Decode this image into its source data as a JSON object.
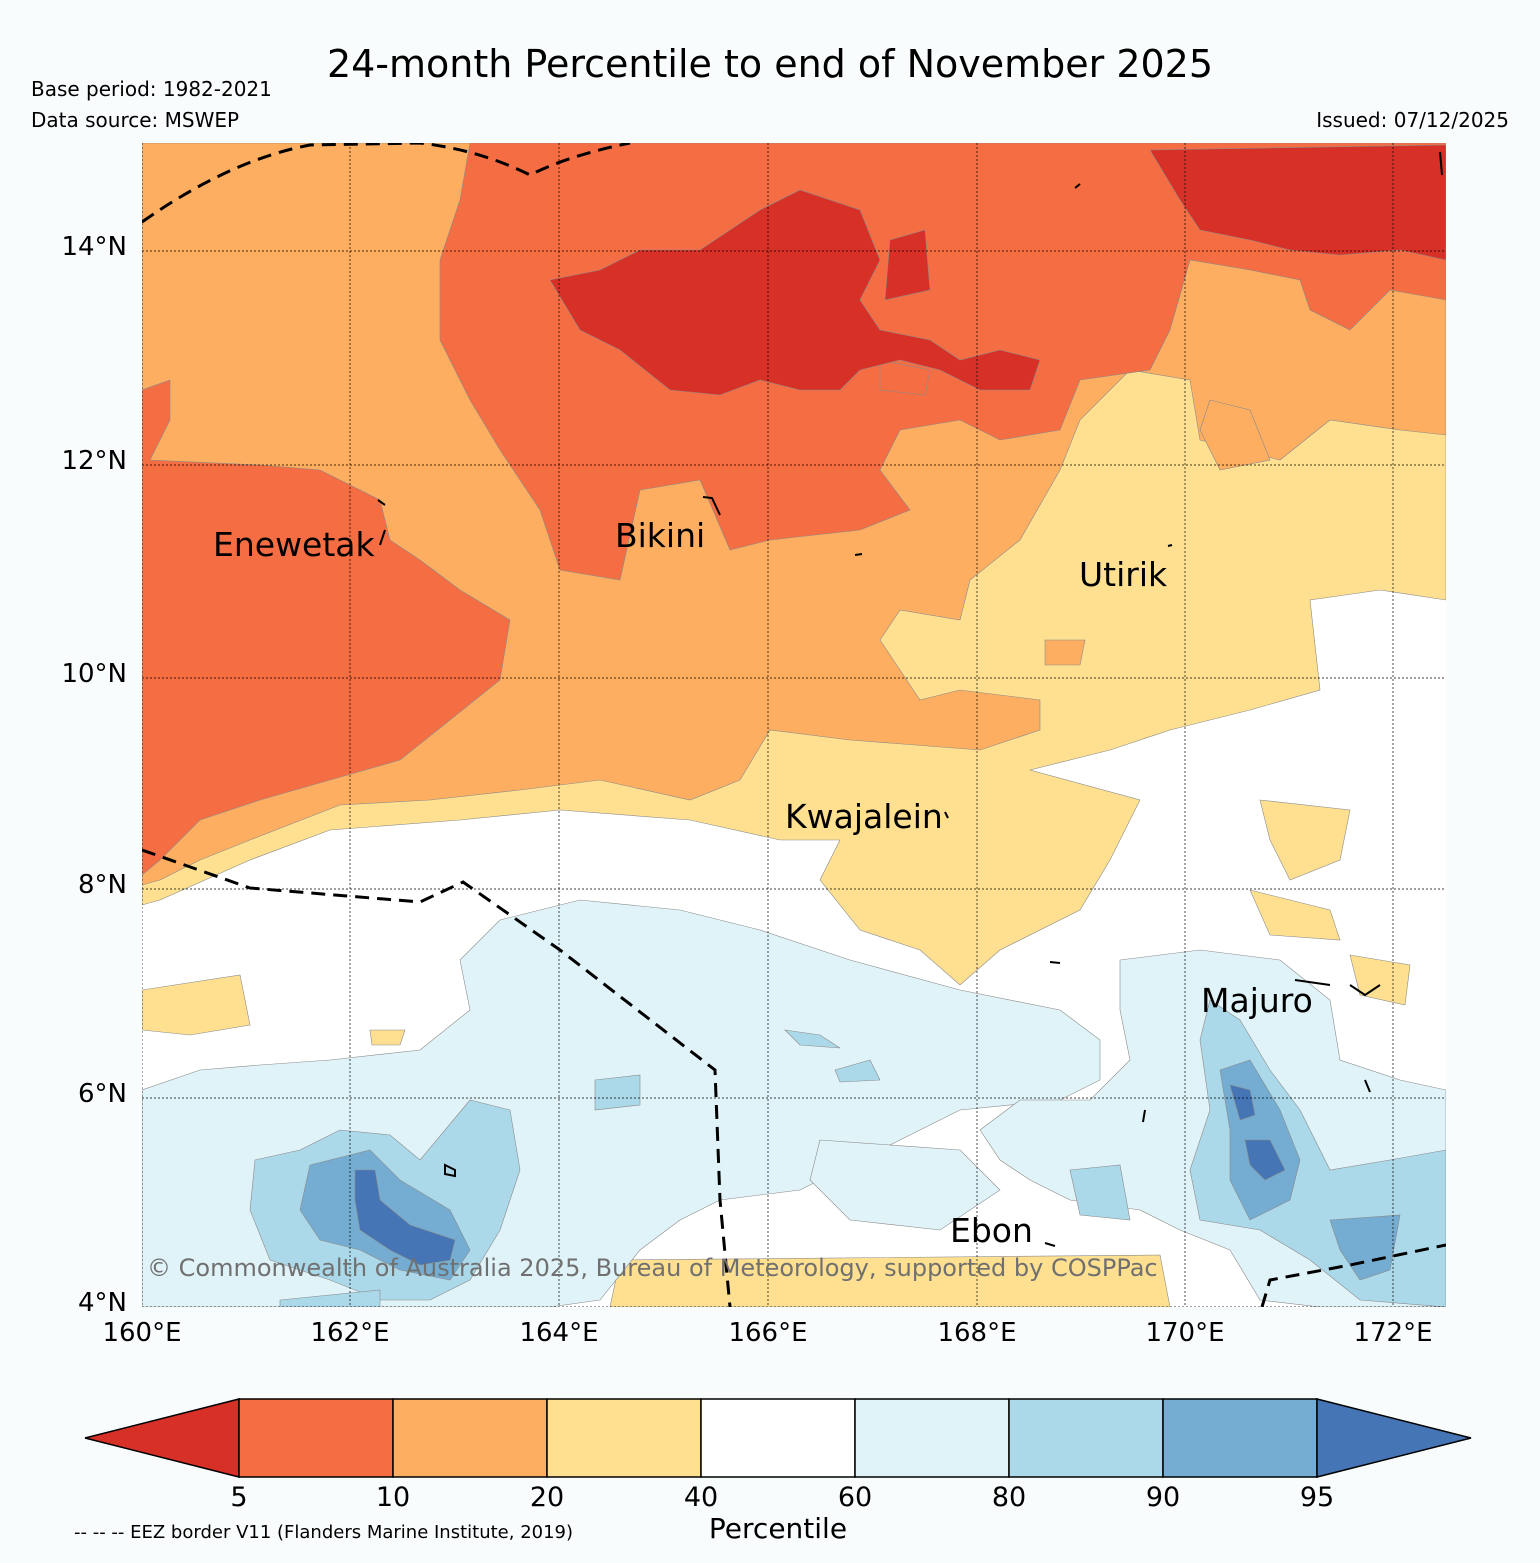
{
  "header": {
    "title": "24-month Percentile to end of November 2025",
    "base_period": "Base period: 1982-2021",
    "data_source": "Data source: MSWEP",
    "issued": "Issued: 07/12/2025"
  },
  "map": {
    "lat_labels": [
      "14°N",
      "12°N",
      "10°N",
      "8°N",
      "6°N",
      "4°N"
    ],
    "lon_labels": [
      "160°E",
      "162°E",
      "164°E",
      "166°E",
      "168°E",
      "170°E",
      "172°E"
    ],
    "places": [
      "Enewetak",
      "Bikini",
      "Utirik",
      "Kwajalein",
      "Majuro",
      "Ebon"
    ],
    "copyright": "© Commonwealth of Australia 2025, Bureau of Meteorology, supported by COSPPac"
  },
  "colorbar": {
    "ticks": [
      "5",
      "10",
      "20",
      "40",
      "60",
      "80",
      "90",
      "95"
    ],
    "label": "Percentile",
    "colors": [
      "#d73027",
      "#f46d43",
      "#fdae61",
      "#fee090",
      "#ffffff",
      "#e0f3f8",
      "#abd9e9",
      "#74add1",
      "#4575b4"
    ]
  },
  "footer": {
    "eez_note": "-- -- -- EEZ border V11 (Flanders Marine Institute, 2019)"
  }
}
